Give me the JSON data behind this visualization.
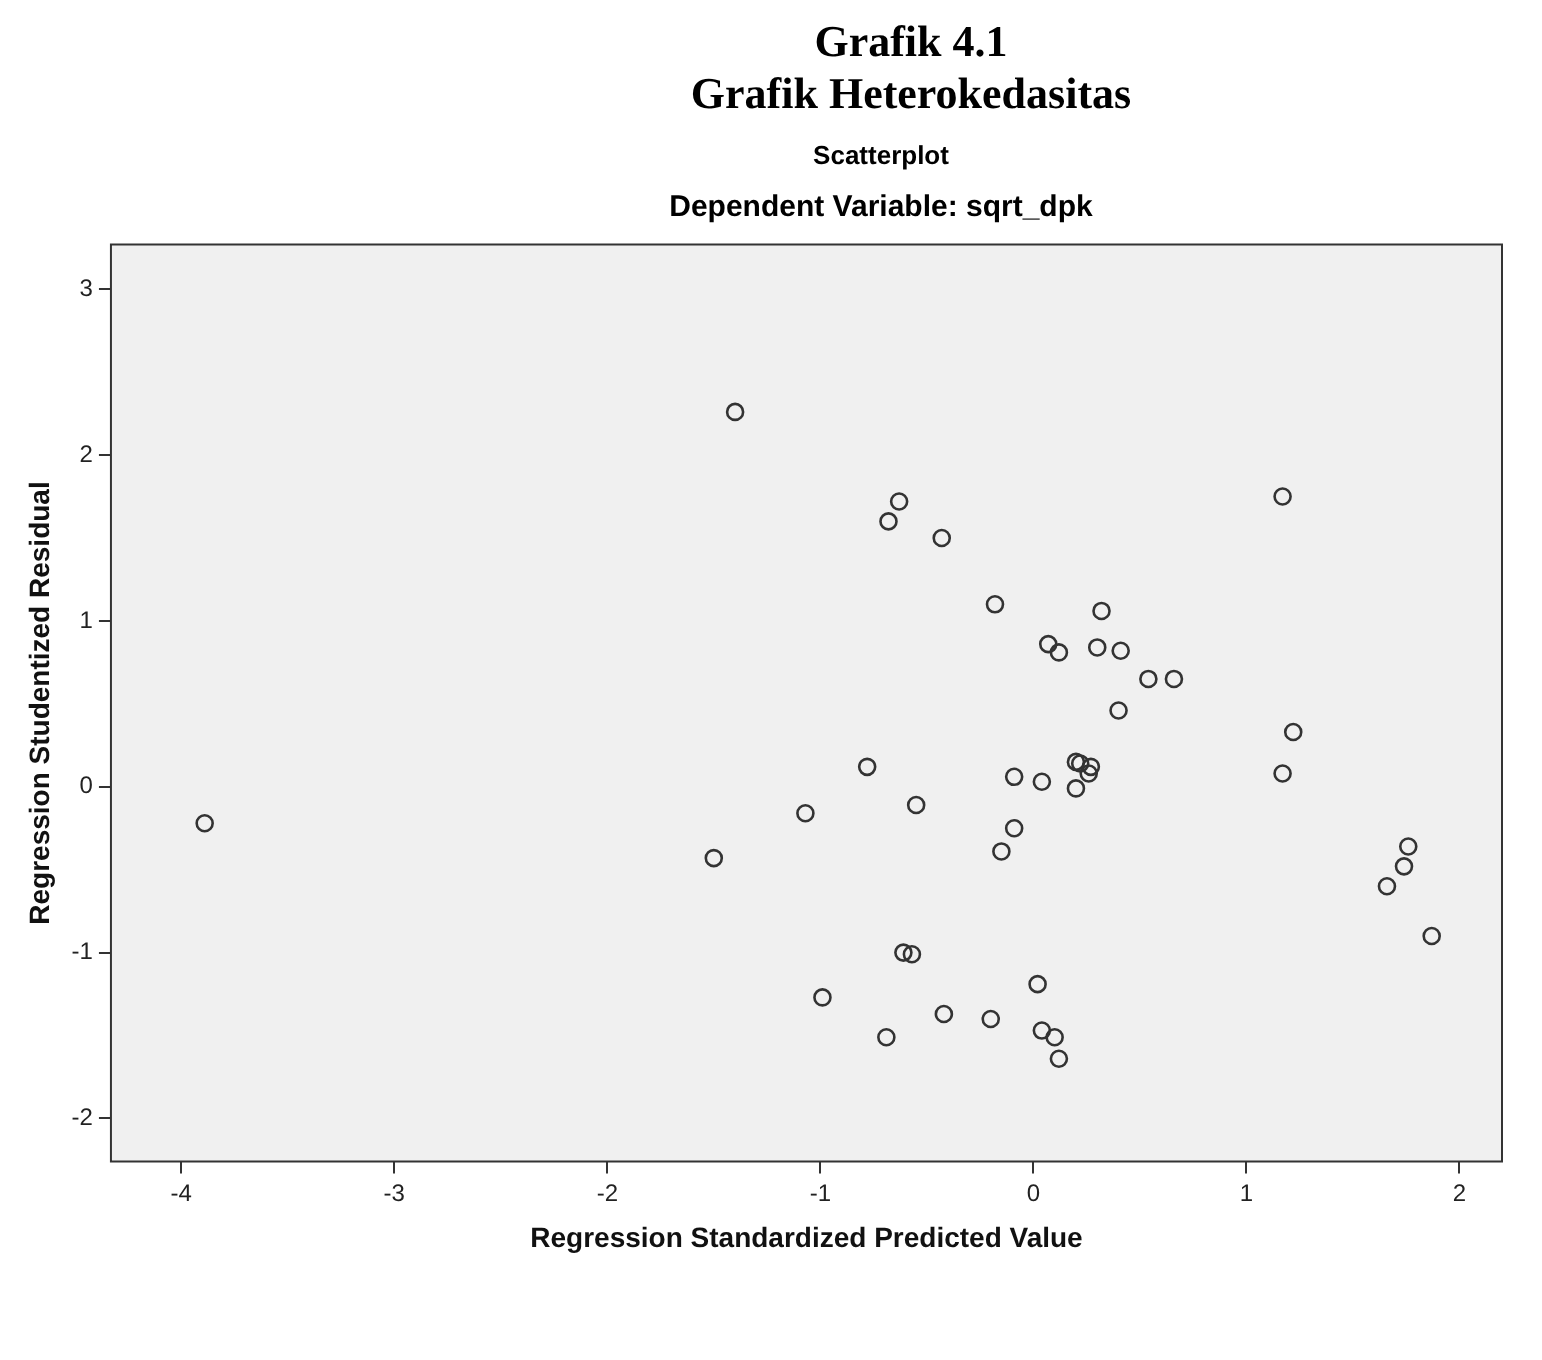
{
  "chart_data": {
    "type": "scatter",
    "title": "Grafik 4.1",
    "subtitle": "Grafik Heterokedasitas",
    "annotations": [
      "Scatterplot",
      "Dependent Variable: sqrt_dpk"
    ],
    "xlabel": "Regression Standardized Predicted Value",
    "ylabel": "Regression Studentized Residual",
    "xlim": [
      -4.33,
      2.2
    ],
    "ylim": [
      -2.26,
      3.27
    ],
    "xticks": [
      -4,
      -3,
      -2,
      -1,
      0,
      1,
      2
    ],
    "yticks": [
      -2,
      -1,
      0,
      1,
      2,
      3
    ],
    "grid": false,
    "legend": false,
    "marker": "circle",
    "series": [
      {
        "color": "#333333",
        "x": [
          -1.4,
          -0.63,
          -0.68,
          -0.43,
          -0.18,
          0.32,
          0.07,
          0.12,
          0.3,
          0.41,
          0.54,
          0.66,
          0.4,
          1.17,
          1.22,
          -0.78,
          -0.09,
          0.04,
          0.2,
          0.22,
          0.27,
          0.26,
          0.2,
          1.17,
          -1.07,
          -0.55,
          -0.09,
          -0.15,
          1.76,
          1.74,
          1.66,
          1.87,
          -0.61,
          -0.57,
          -0.99,
          -0.69,
          -0.42,
          -0.2,
          0.02,
          0.04,
          0.1,
          0.12,
          -3.89,
          -1.5
        ],
        "values": [
          2.26,
          1.72,
          1.6,
          1.5,
          1.1,
          1.06,
          0.86,
          0.81,
          0.84,
          0.82,
          0.65,
          0.65,
          0.46,
          1.75,
          0.33,
          0.12,
          0.06,
          0.03,
          0.15,
          0.14,
          0.12,
          0.08,
          -0.01,
          0.08,
          -0.16,
          -0.11,
          -0.25,
          -0.39,
          -0.36,
          -0.48,
          -0.6,
          -0.9,
          -1.0,
          -1.01,
          -1.27,
          -1.51,
          -1.37,
          -1.4,
          -1.19,
          -1.47,
          -1.51,
          -1.64,
          -0.22,
          -0.43
        ]
      }
    ]
  }
}
